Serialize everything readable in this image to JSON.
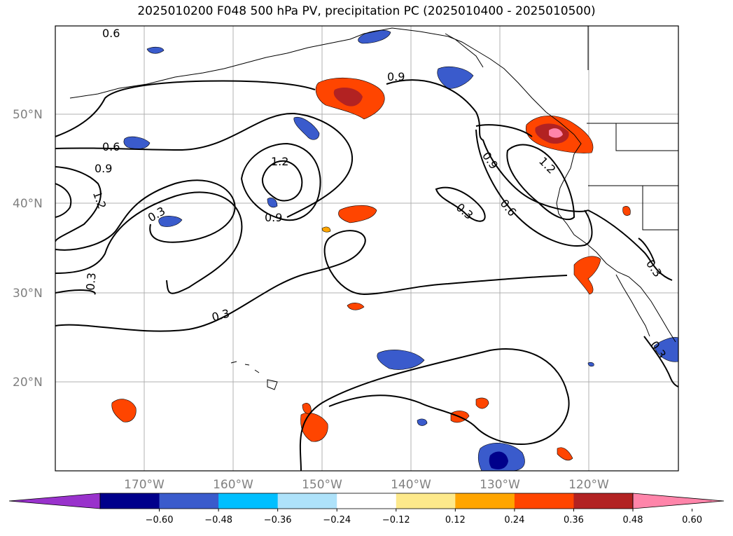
{
  "title": "2025010200 F048 500 hPa PV, precipitation PC (2025010400 - 2025010500)",
  "lat_labels": [
    "50°N",
    "40°N",
    "30°N",
    "20°N"
  ],
  "lon_labels": [
    "170°W",
    "160°W",
    "150°W",
    "140°W",
    "130°W",
    "120°W"
  ],
  "contour_labels": [
    "0.6",
    "0.6",
    "0.9",
    "0.9",
    "0.9",
    "1.2",
    "1.2",
    "1.2",
    "0.3",
    "0.3",
    "0.3",
    "0.3",
    "0.6",
    "0.9",
    "0.3",
    "0.3"
  ],
  "colorbar": {
    "ticks": [
      "−0.60",
      "−0.48",
      "−0.36",
      "−0.24",
      "−0.12",
      "0.12",
      "0.24",
      "0.36",
      "0.48",
      "0.60"
    ],
    "colors": [
      "#9932cc",
      "#00008b",
      "#3a5bcc",
      "#00bfff",
      "#aee2fa",
      "#ffffff",
      "#fde98b",
      "#ffa500",
      "#ff4500",
      "#b22222",
      "#ff85aa"
    ]
  },
  "precip_colors": {
    "dark_blue": "#00008b",
    "blue": "#3a5bcc",
    "light_blue": "#00bfff",
    "yellow": "#fde98b",
    "orange": "#ffa500",
    "red_orange": "#ff4500",
    "dark_red": "#b22222",
    "pink": "#ff85aa"
  }
}
